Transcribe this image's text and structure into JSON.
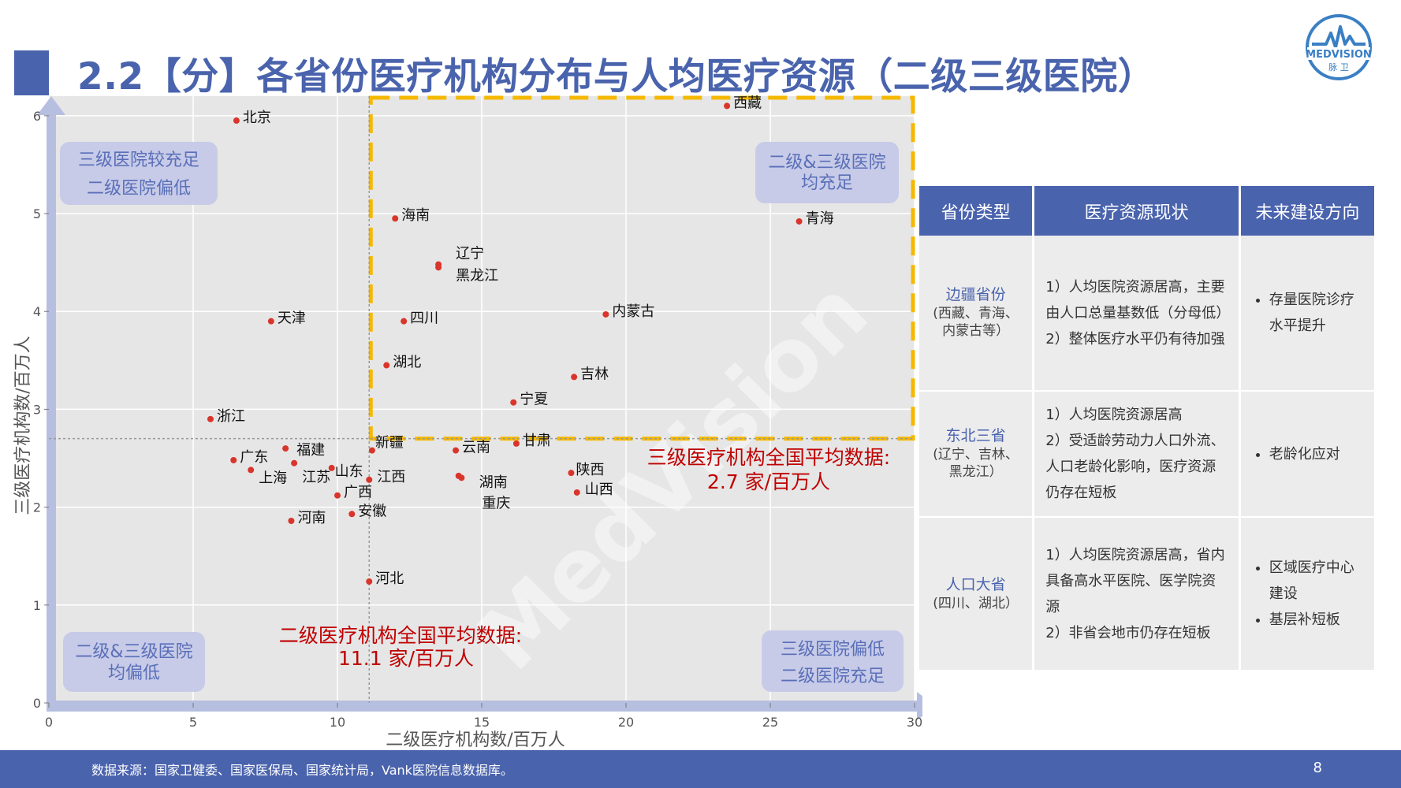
{
  "title": "2.2【分】各省份医疗机构分布与人均医疗资源（二级三级医院）",
  "logo": {
    "text": "MEDVISION",
    "sub": "脉 卫",
    "color": "#3a7fc4"
  },
  "chart_data": {
    "type": "scatter",
    "xlabel": "二级医疗机构数/百万人",
    "ylabel": "三级医疗机构数/百万人",
    "xlim": [
      0,
      30
    ],
    "ylim": [
      0,
      6.2
    ],
    "xticks": [
      0,
      5,
      10,
      15,
      20,
      25,
      30
    ],
    "yticks": [
      0,
      1,
      2,
      3,
      4,
      5,
      6
    ],
    "grid": true,
    "watermark": "MedVision",
    "point_color": "#d9352b",
    "points": [
      {
        "name": "北京",
        "x": 6.5,
        "y": 5.95
      },
      {
        "name": "西藏",
        "x": 23.5,
        "y": 6.1
      },
      {
        "name": "海南",
        "x": 12.0,
        "y": 4.95
      },
      {
        "name": "青海",
        "x": 26.0,
        "y": 4.92
      },
      {
        "name": "辽宁",
        "x": 13.5,
        "y": 4.48
      },
      {
        "name": "黑龙江",
        "x": 13.5,
        "y": 4.45
      },
      {
        "name": "天津",
        "x": 7.7,
        "y": 3.9
      },
      {
        "name": "四川",
        "x": 12.3,
        "y": 3.9
      },
      {
        "name": "内蒙古",
        "x": 19.3,
        "y": 3.97
      },
      {
        "name": "湖北",
        "x": 11.7,
        "y": 3.45
      },
      {
        "name": "吉林",
        "x": 18.2,
        "y": 3.33
      },
      {
        "name": "宁夏",
        "x": 16.1,
        "y": 3.07
      },
      {
        "name": "浙江",
        "x": 5.6,
        "y": 2.9
      },
      {
        "name": "甘肃",
        "x": 16.2,
        "y": 2.65
      },
      {
        "name": "新疆",
        "x": 11.2,
        "y": 2.58
      },
      {
        "name": "云南",
        "x": 14.1,
        "y": 2.58
      },
      {
        "name": "福建",
        "x": 8.2,
        "y": 2.6
      },
      {
        "name": "广东",
        "x": 6.4,
        "y": 2.48
      },
      {
        "name": "上海",
        "x": 7.0,
        "y": 2.38
      },
      {
        "name": "江苏",
        "x": 8.5,
        "y": 2.45
      },
      {
        "name": "山东",
        "x": 9.8,
        "y": 2.4
      },
      {
        "name": "江西",
        "x": 11.1,
        "y": 2.28
      },
      {
        "name": "湖南",
        "x": 14.2,
        "y": 2.32
      },
      {
        "name": "重庆",
        "x": 14.3,
        "y": 2.3
      },
      {
        "name": "陕西",
        "x": 18.1,
        "y": 2.35
      },
      {
        "name": "山西",
        "x": 18.3,
        "y": 2.15
      },
      {
        "name": "广西",
        "x": 10.0,
        "y": 2.12
      },
      {
        "name": "安徽",
        "x": 10.5,
        "y": 1.93
      },
      {
        "name": "河南",
        "x": 8.4,
        "y": 1.86
      },
      {
        "name": "河北",
        "x": 11.1,
        "y": 1.24
      }
    ],
    "avg_x": 11.1,
    "avg_y": 2.7,
    "avg_y_label_1": "三级医疗机构全国平均数据:",
    "avg_y_label_2": "2.7 家/百万人",
    "avg_x_label_1": "二级医疗机构全国平均数据:",
    "avg_x_label_2": "11.1 家/百万人",
    "quadrants": {
      "top_left": [
        "三级医院较充足",
        "二级医院偏低"
      ],
      "top_right": [
        "二级&三级医院",
        "均充足"
      ],
      "bottom_left": [
        "二级&三级医院",
        "均偏低"
      ],
      "bottom_right": [
        "三级医院偏低",
        "二级医院充足"
      ]
    }
  },
  "table": {
    "headers": [
      "省份类型",
      "医疗资源现状",
      "未来建设方向"
    ],
    "rows": [
      {
        "type_name": "边疆省份",
        "type_sub_1": "(西藏、青海、",
        "type_sub_2": "内蒙古等）",
        "status": [
          "1）人均医院资源居高，主要",
          "由人口总量基数低（分母低）",
          "2）整体医疗水平仍有待加强"
        ],
        "directions": [
          "存量医院诊疗水平提升"
        ]
      },
      {
        "type_name": "东北三省",
        "type_sub_1": "(辽宁、吉林、",
        "type_sub_2": "黑龙江）",
        "status": [
          "1）人均医院资源居高",
          "2）受适龄劳动力人口外流、",
          "人口老龄化影响，医疗资源",
          "仍存在短板"
        ],
        "directions": [
          "老龄化应对"
        ]
      },
      {
        "type_name": "人口大省",
        "type_sub_1": "(四川、湖北）",
        "type_sub_2": "",
        "status": [
          "1）人均医院资源居高，省内",
          "具备高水平医院、医学院资",
          "源",
          "2）非省会地市仍存在短板"
        ],
        "directions": [
          "区域医疗中心建设",
          "基层补短板"
        ]
      }
    ]
  },
  "footer": {
    "source": "数据来源：国家卫健委、国家医保局、国家统计局，Vank医院信息数据库。",
    "page": "8"
  }
}
